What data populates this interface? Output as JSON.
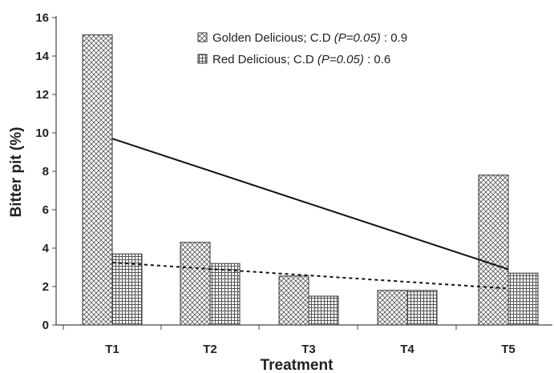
{
  "chart_data": {
    "type": "bar",
    "categories": [
      "T1",
      "T2",
      "T3",
      "T4",
      "T5"
    ],
    "series": [
      {
        "name": "Golden Delicious",
        "values": [
          15.1,
          4.3,
          2.55,
          1.8,
          7.8
        ],
        "pattern": "crosshatch",
        "legend_cd": "0.9"
      },
      {
        "name": "Red Delicious",
        "values": [
          3.7,
          3.2,
          1.5,
          1.8,
          2.7
        ],
        "pattern": "grid",
        "legend_cd": "0.6"
      }
    ],
    "trendlines": [
      {
        "series": "Golden Delicious",
        "style": "solid",
        "start": 9.7,
        "end": 2.9
      },
      {
        "series": "Red Delicious",
        "style": "dashed",
        "start": 3.25,
        "end": 1.9
      }
    ],
    "legend_cd_prefix": "; C.D ",
    "legend_p": "(P=0.05)",
    "legend_sep": " : ",
    "xlabel": "Treatment",
    "ylabel": "Bitter pit (%)",
    "ylim": [
      0,
      16
    ],
    "yticks": [
      0,
      2,
      4,
      6,
      8,
      10,
      12,
      14,
      16
    ],
    "grid": false,
    "legend_position": "top-right",
    "colors": {
      "bar_fill": "#ffffff",
      "pattern": "#555555",
      "axis": "#444444",
      "line": "#111111"
    }
  }
}
